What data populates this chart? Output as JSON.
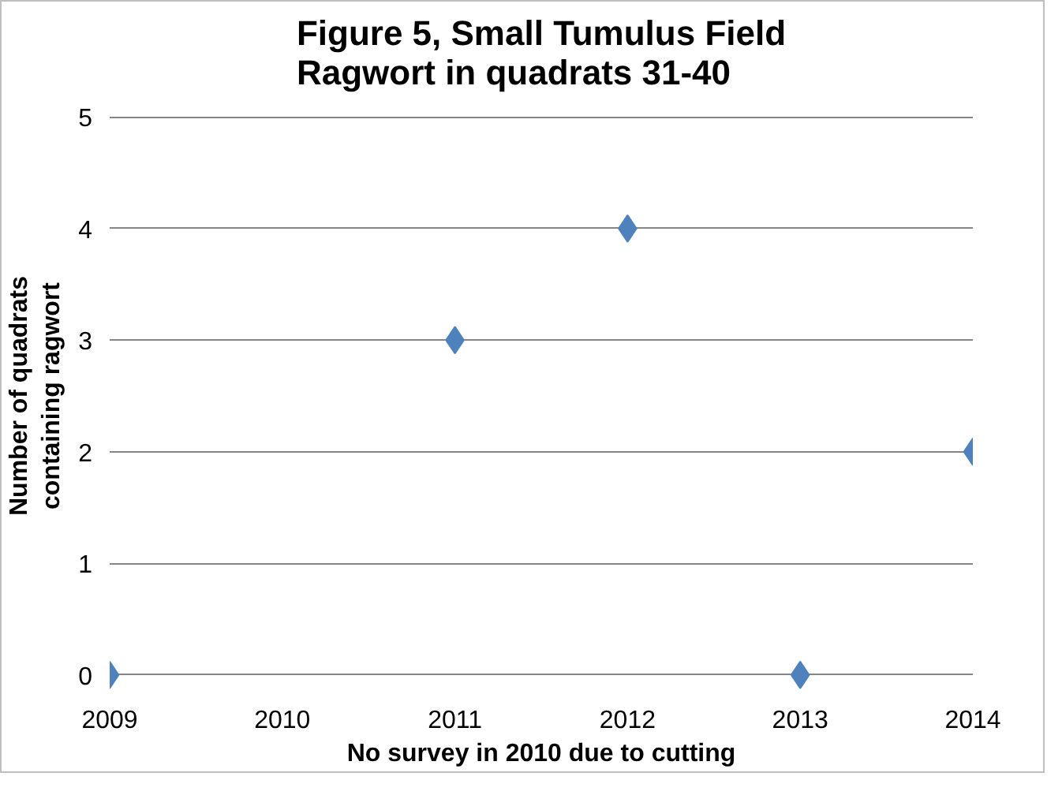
{
  "chart_data": {
    "type": "scatter",
    "title": "Figure 5, Small Tumulus Field\nRagwort in quadrats 31-40",
    "xlabel": "No survey in 2010 due to cutting",
    "ylabel": "Number of quadrats\ncontaining ragwort",
    "x": [
      2009,
      2011,
      2012,
      2013,
      2014
    ],
    "series": [
      {
        "color": "#4f81bd",
        "values": [
          0,
          3,
          4,
          0,
          2
        ]
      }
    ],
    "xlim": [
      2009,
      2014
    ],
    "xticks": [
      2009,
      2010,
      2011,
      2012,
      2013,
      2014
    ],
    "ylim": [
      0,
      5
    ],
    "yticks": [
      0,
      1,
      2,
      3,
      4,
      5
    ],
    "grid": "y",
    "marker": "diamond"
  }
}
